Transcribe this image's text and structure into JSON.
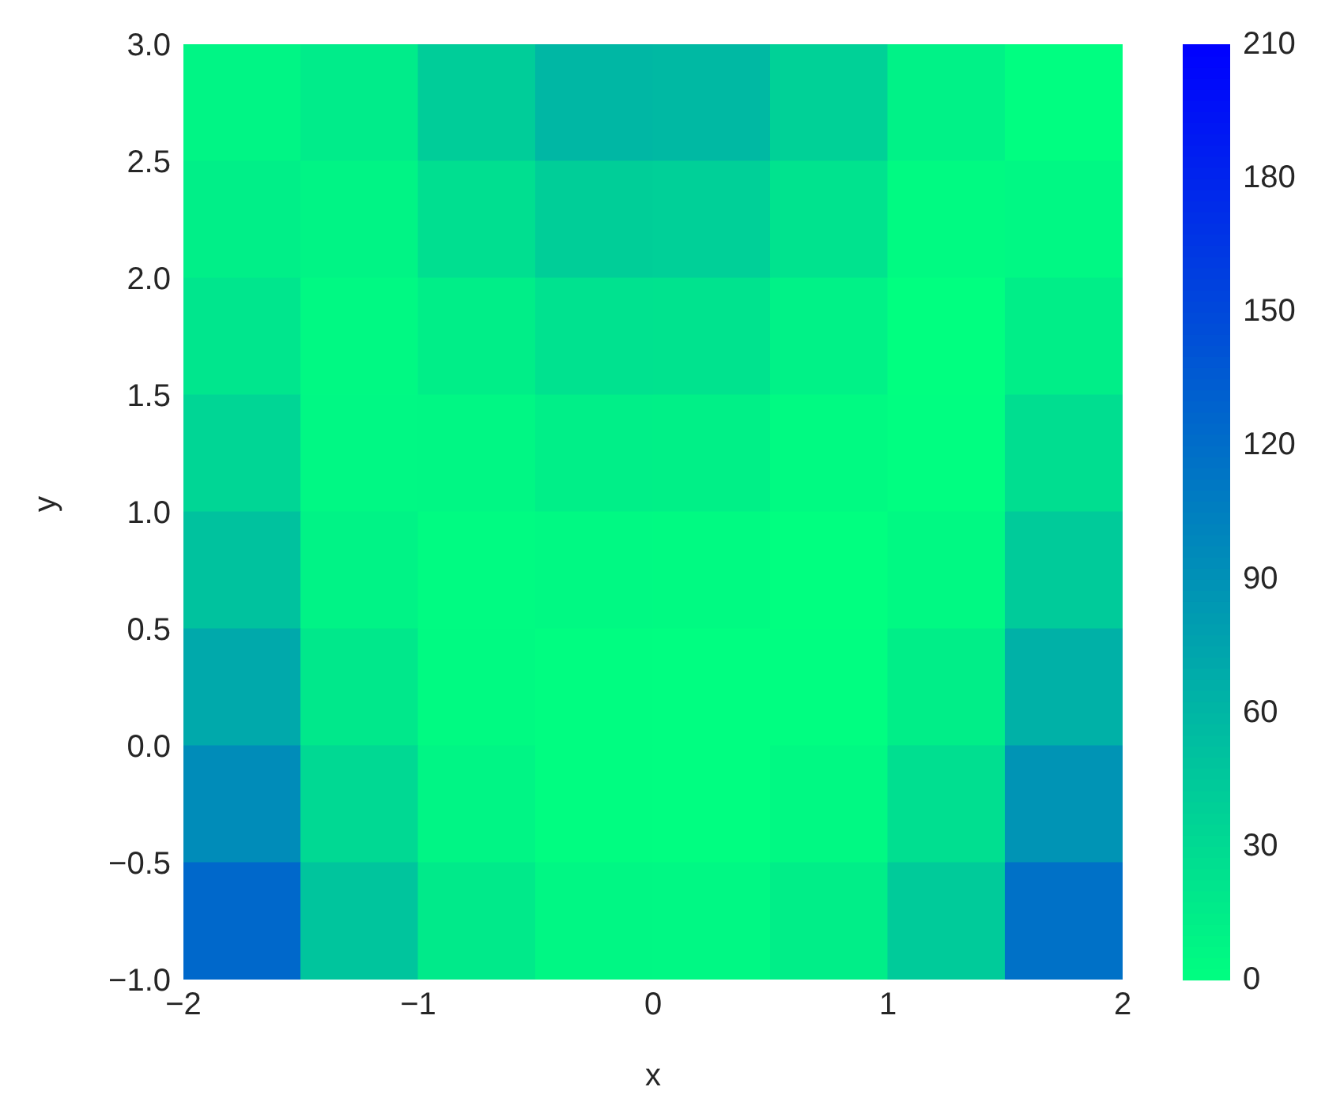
{
  "chart_data": {
    "type": "heatmap",
    "xlabel": "x",
    "ylabel": "y",
    "xlim": [
      -2,
      2
    ],
    "ylim": [
      -1,
      3
    ],
    "xticks": [
      {
        "value": -2,
        "label": "−2"
      },
      {
        "value": -1,
        "label": "−1"
      },
      0,
      1,
      2
    ],
    "yticks": [
      {
        "value": -1,
        "label": "−1.0"
      },
      {
        "value": -0.5,
        "label": "−0.5"
      },
      {
        "value": 0,
        "label": "0.0"
      },
      {
        "value": 0.5,
        "label": "0.5"
      },
      {
        "value": 1,
        "label": "1.0"
      },
      {
        "value": 1.5,
        "label": "1.5"
      },
      {
        "value": 2,
        "label": "2.0"
      },
      {
        "value": 2.5,
        "label": "2.5"
      },
      {
        "value": 3,
        "label": "3.0"
      }
    ],
    "cells": [
      [
        8,
        16,
        41,
        59,
        58,
        38,
        11,
        1
      ],
      [
        13,
        9,
        26,
        40,
        39,
        23,
        4,
        6
      ],
      [
        21,
        5,
        14,
        24,
        23,
        11,
        0,
        14
      ],
      [
        34,
        6,
        7,
        13,
        12,
        4,
        1,
        27
      ],
      [
        50,
        10,
        3,
        5,
        4,
        0,
        5,
        43
      ],
      [
        71,
        19,
        4,
        2,
        1,
        1,
        14,
        64
      ],
      [
        95,
        31,
        8,
        2,
        1,
        5,
        26,
        88
      ],
      [
        124,
        48,
        17,
        7,
        6,
        14,
        43,
        117
      ]
    ],
    "colors": [
      "#00ff80",
      "#0000ff"
    ],
    "clim": [
      0,
      210
    ],
    "cticks": [
      0,
      30,
      60,
      90,
      120,
      150,
      180,
      210
    ]
  }
}
